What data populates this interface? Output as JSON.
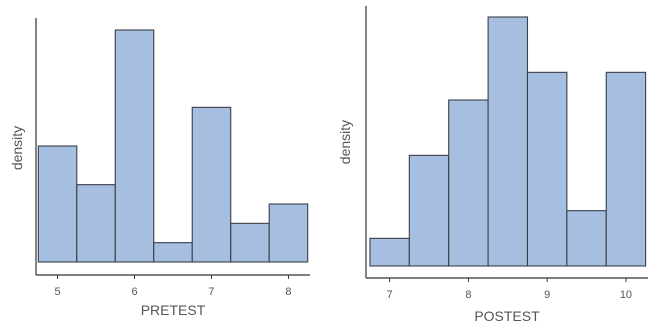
{
  "colors": {
    "bar_fill": "#a6bee0",
    "bar_stroke": "#3b3f47",
    "axis": "#333333",
    "text": "#555555"
  },
  "chart_data": [
    {
      "type": "histogram",
      "xlabel": "PRETEST",
      "ylabel": "density",
      "x_ticks": [
        5,
        6,
        7,
        8
      ],
      "xlim": [
        4.72,
        8.28
      ],
      "ylim": [
        0,
        1.22
      ],
      "bin_edges": [
        4.75,
        5.25,
        5.75,
        6.25,
        6.75,
        7.25,
        7.75,
        8.25
      ],
      "values": [
        0.6,
        0.4,
        1.2,
        0.1,
        0.8,
        0.2,
        0.3
      ],
      "y_ticks_shown": false,
      "grid": false
    },
    {
      "type": "histogram",
      "xlabel": "POSTEST",
      "ylabel": "density",
      "x_ticks": [
        7,
        8,
        9,
        10
      ],
      "xlim": [
        6.7,
        10.28
      ],
      "ylim": [
        0,
        0.92
      ],
      "bin_edges": [
        6.75,
        7.25,
        7.75,
        8.25,
        8.75,
        9.25,
        9.75,
        10.25
      ],
      "values": [
        0.1,
        0.4,
        0.6,
        0.9,
        0.7,
        0.2,
        0.7
      ],
      "y_ticks_shown": false,
      "grid": false
    }
  ]
}
